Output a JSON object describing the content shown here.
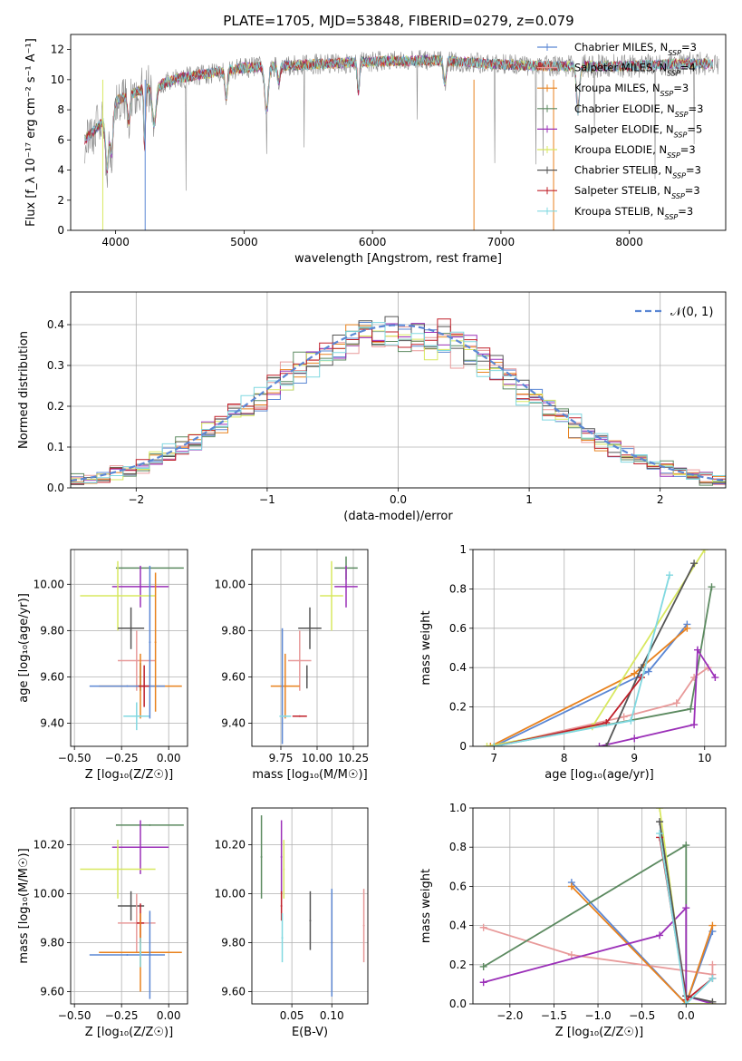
{
  "figure": {
    "title": "PLATE=1705, MJD=53848, FIBERID=0279, z=0.079"
  },
  "colors": {
    "Chabrier MILES": "#5b87d4",
    "Salpeter MILES": "#e89a9a",
    "Kroupa MILES": "#e8821e",
    "Chabrier ELODIE": "#5c8a60",
    "Salpeter ELODIE": "#9b30b8",
    "Kroupa ELODIE": "#d8e860",
    "Chabrier STELIB": "#555555",
    "Salpeter STELIB": "#c0202a",
    "Kroupa STELIB": "#80d8e0"
  },
  "chart_data": [
    {
      "id": "spectrum",
      "type": "line",
      "xlabel": "wavelength [Angstrom, rest frame]",
      "ylabel": "Flux [f_λ 10⁻¹⁷ erg cm⁻² s⁻¹ A⁻¹]",
      "xlim": [
        3650,
        8750
      ],
      "ylim": [
        0,
        13
      ],
      "xticks": [
        4000,
        5000,
        6000,
        7000,
        8000
      ],
      "yticks": [
        0,
        2,
        4,
        6,
        8,
        10,
        12
      ],
      "grid": false,
      "legend_position": "right",
      "continuum": {
        "x": [
          3760,
          3900,
          4000,
          4200,
          4500,
          5000,
          5500,
          6000,
          6500,
          7000,
          7400,
          8000,
          8500,
          8700
        ],
        "y": [
          6.0,
          7.2,
          8.6,
          9.3,
          10.1,
          10.8,
          11.0,
          11.2,
          11.3,
          11.0,
          10.9,
          10.9,
          11.1,
          11.0
        ]
      },
      "series": [
        {
          "name": "Chabrier MILES",
          "nssp": "3"
        },
        {
          "name": "Salpeter MILES",
          "nssp": "4"
        },
        {
          "name": "Kroupa MILES",
          "nssp": "3"
        },
        {
          "name": "Chabrier ELODIE",
          "nssp": "3"
        },
        {
          "name": "Salpeter ELODIE",
          "nssp": "5"
        },
        {
          "name": "Kroupa ELODIE",
          "nssp": "3"
        },
        {
          "name": "Chabrier STELIB",
          "nssp": "3"
        },
        {
          "name": "Salpeter STELIB",
          "nssp": "3"
        },
        {
          "name": "Kroupa STELIB",
          "nssp": "3"
        }
      ]
    },
    {
      "id": "residuals",
      "type": "histogram",
      "xlabel": "(data-model)/error",
      "ylabel": "Normed distribution",
      "xlim": [
        -2.5,
        2.5
      ],
      "ylim": [
        0,
        0.48
      ],
      "xticks": [
        -2,
        -1,
        0,
        1,
        2
      ],
      "yticks": [
        0.0,
        0.1,
        0.2,
        0.3,
        0.4
      ],
      "grid": true,
      "legend_position": "top-right",
      "reference_curve": {
        "name": "𝒩(0, 1)",
        "mu": 0,
        "sigma": 1
      }
    },
    {
      "id": "age_vs_Z",
      "type": "errorbar",
      "xlabel": "Z [log₁₀(Z/Z☉)]",
      "ylabel": "age  [log₁₀(age/yr)]",
      "xlim": [
        -0.52,
        0.1
      ],
      "ylim": [
        9.3,
        10.15
      ],
      "xticks": [
        -0.5,
        -0.25,
        0.0
      ],
      "yticks": [
        9.4,
        9.6,
        9.8,
        10.0
      ],
      "grid": true,
      "points": [
        {
          "series": "Chabrier ELODIE",
          "x": -0.1,
          "xerr": 0.18,
          "y": 10.07,
          "yerr": 0.0
        },
        {
          "series": "Salpeter ELODIE",
          "x": -0.15,
          "xerr": 0.15,
          "y": 9.99,
          "yerr": 0.09
        },
        {
          "series": "Kroupa ELODIE",
          "x": -0.27,
          "xerr": 0.2,
          "y": 9.95,
          "yerr": 0.15
        },
        {
          "series": "Chabrier STELIB",
          "x": -0.2,
          "xerr": 0.07,
          "y": 9.81,
          "yerr": 0.09
        },
        {
          "series": "Salpeter MILES",
          "x": -0.17,
          "xerr": 0.1,
          "y": 9.67,
          "yerr": 0.13
        },
        {
          "series": "Chabrier STELIB",
          "x": -0.15,
          "xerr": 0.0,
          "y": 9.6,
          "yerr": 0.06
        },
        {
          "series": "Kroupa MILES",
          "x": -0.15,
          "xerr": 0.22,
          "y": 9.56,
          "yerr": 0.14
        },
        {
          "series": "Chabrier MILES",
          "x": -0.22,
          "xerr": 0.2,
          "y": 9.56,
          "yerr": 0.0
        },
        {
          "series": "Salpeter STELIB",
          "x": -0.13,
          "xerr": 0.03,
          "y": 9.56,
          "yerr": 0.09
        },
        {
          "series": "Kroupa STELIB",
          "x": -0.17,
          "xerr": 0.07,
          "y": 9.43,
          "yerr": 0.06
        },
        {
          "series": "Chabrier MILES",
          "x": -0.1,
          "xerr": 0.0,
          "y": 9.75,
          "yerr": 0.33
        },
        {
          "series": "Kroupa MILES",
          "x": -0.07,
          "xerr": 0.0,
          "y": 9.75,
          "yerr": 0.3
        }
      ]
    },
    {
      "id": "age_vs_mass",
      "type": "errorbar",
      "xlabel": "mass [log₁₀(M/M☉)]",
      "ylabel": "",
      "xlim": [
        9.55,
        10.35
      ],
      "ylim": [
        9.3,
        10.15
      ],
      "xticks": [
        9.75,
        10.0,
        10.25
      ],
      "yticks": [
        9.4,
        9.6,
        9.8,
        10.0
      ],
      "grid": true,
      "points": [
        {
          "series": "Chabrier ELODIE",
          "x": 10.2,
          "xerr": 0.08,
          "y": 10.07,
          "yerr": 0.05
        },
        {
          "series": "Salpeter ELODIE",
          "x": 10.2,
          "xerr": 0.08,
          "y": 9.99,
          "yerr": 0.09
        },
        {
          "series": "Kroupa ELODIE",
          "x": 10.1,
          "xerr": 0.08,
          "y": 9.95,
          "yerr": 0.15
        },
        {
          "series": "Chabrier STELIB",
          "x": 9.95,
          "xerr": 0.08,
          "y": 9.81,
          "yerr": 0.09
        },
        {
          "series": "Salpeter MILES",
          "x": 9.88,
          "xerr": 0.08,
          "y": 9.67,
          "yerr": 0.13
        },
        {
          "series": "Kroupa MILES",
          "x": 9.78,
          "xerr": 0.1,
          "y": 9.56,
          "yerr": 0.14
        },
        {
          "series": "Chabrier MILES",
          "x": 9.76,
          "xerr": 0.0,
          "y": 9.56,
          "yerr": 0.25
        },
        {
          "series": "Salpeter STELIB",
          "x": 9.88,
          "xerr": 0.05,
          "y": 9.43,
          "yerr": 0.0
        },
        {
          "series": "Kroupa STELIB",
          "x": 9.78,
          "xerr": 0.04,
          "y": 9.43,
          "yerr": 0.0
        },
        {
          "series": "Chabrier STELIB",
          "x": 9.93,
          "xerr": 0.0,
          "y": 9.6,
          "yerr": 0.05
        }
      ]
    },
    {
      "id": "weight_vs_age",
      "type": "line",
      "xlabel": "age  [log₁₀(age/yr)]",
      "ylabel": "mass weight",
      "xlim": [
        6.7,
        10.3
      ],
      "ylim": [
        0,
        1.0
      ],
      "xticks": [
        7,
        8,
        9,
        10
      ],
      "yticks": [
        0.0,
        0.2,
        0.4,
        0.6,
        0.8,
        1.0
      ],
      "grid": true,
      "series": [
        {
          "name": "Chabrier MILES",
          "x": [
            7.0,
            9.2,
            9.75
          ],
          "y": [
            0.0,
            0.38,
            0.62
          ]
        },
        {
          "name": "Salpeter MILES",
          "x": [
            7.0,
            8.85,
            9.6,
            9.85,
            10.05
          ],
          "y": [
            0.0,
            0.15,
            0.22,
            0.35,
            0.4
          ]
        },
        {
          "name": "Kroupa MILES",
          "x": [
            6.95,
            9.0,
            9.75
          ],
          "y": [
            0.0,
            0.37,
            0.6
          ]
        },
        {
          "name": "Chabrier ELODIE",
          "x": [
            7.0,
            9.8,
            10.1
          ],
          "y": [
            0.0,
            0.19,
            0.81
          ]
        },
        {
          "name": "Salpeter ELODIE",
          "x": [
            8.5,
            9.0,
            9.85,
            9.9,
            10.15
          ],
          "y": [
            0.0,
            0.04,
            0.11,
            0.49,
            0.35
          ]
        },
        {
          "name": "Kroupa ELODIE",
          "x": [
            6.9,
            8.4,
            10.0
          ],
          "y": [
            0.0,
            0.1,
            1.0
          ]
        },
        {
          "name": "Chabrier STELIB",
          "x": [
            8.6,
            9.1,
            9.85
          ],
          "y": [
            0.0,
            0.4,
            0.93
          ]
        },
        {
          "name": "Salpeter STELIB",
          "x": [
            7.0,
            8.6,
            9.1
          ],
          "y": [
            0.0,
            0.12,
            0.35
          ]
        },
        {
          "name": "Kroupa STELIB",
          "x": [
            7.0,
            8.95,
            9.5
          ],
          "y": [
            0.0,
            0.13,
            0.87
          ]
        }
      ]
    },
    {
      "id": "mass_vs_Z",
      "type": "errorbar",
      "xlabel": "Z [log₁₀(Z/Z☉)]",
      "ylabel": "mass [log₁₀(M/M☉)]",
      "xlim": [
        -0.52,
        0.1
      ],
      "ylim": [
        9.55,
        10.35
      ],
      "xticks": [
        -0.5,
        -0.25,
        0.0
      ],
      "yticks": [
        9.6,
        9.8,
        10.0,
        10.2
      ],
      "grid": true,
      "points": [
        {
          "series": "Chabrier ELODIE",
          "x": -0.1,
          "xerr": 0.18,
          "y": 10.28,
          "yerr": 0.0
        },
        {
          "series": "Salpeter ELODIE",
          "x": -0.15,
          "xerr": 0.15,
          "y": 10.19,
          "yerr": 0.11
        },
        {
          "series": "Kroupa ELODIE",
          "x": -0.27,
          "xerr": 0.2,
          "y": 10.1,
          "yerr": 0.12
        },
        {
          "series": "Chabrier STELIB",
          "x": -0.2,
          "xerr": 0.07,
          "y": 9.95,
          "yerr": 0.06
        },
        {
          "series": "Salpeter MILES",
          "x": -0.17,
          "xerr": 0.1,
          "y": 9.88,
          "yerr": 0.12
        },
        {
          "series": "Salpeter STELIB",
          "x": -0.15,
          "xerr": 0.02,
          "y": 9.88,
          "yerr": 0.08
        },
        {
          "series": "Kroupa MILES",
          "x": -0.15,
          "xerr": 0.22,
          "y": 9.76,
          "yerr": 0.16
        },
        {
          "series": "Chabrier MILES",
          "x": -0.22,
          "xerr": 0.2,
          "y": 9.75,
          "yerr": 0.0
        },
        {
          "series": "Kroupa STELIB",
          "x": -0.15,
          "xerr": 0.0,
          "y": 9.76,
          "yerr": 0.06
        },
        {
          "series": "Chabrier MILES",
          "x": -0.1,
          "xerr": 0.0,
          "y": 9.75,
          "yerr": 0.18
        }
      ]
    },
    {
      "id": "mass_vs_ebv",
      "type": "errorbar",
      "xlabel": "E(B-V)",
      "ylabel": "",
      "xlim": [
        0.0,
        0.145
      ],
      "ylim": [
        9.55,
        10.35
      ],
      "xticks": [
        0.05,
        0.1
      ],
      "yticks": [
        9.6,
        9.8,
        10.0,
        10.2
      ],
      "grid": true,
      "points": [
        {
          "series": "Chabrier ELODIE",
          "x": 0.012,
          "xerr": 0.0,
          "y": 10.15,
          "yerr": 0.17
        },
        {
          "series": "Salpeter ELODIE",
          "x": 0.037,
          "xerr": 0.0,
          "y": 10.15,
          "yerr": 0.15
        },
        {
          "series": "Kroupa ELODIE",
          "x": 0.04,
          "xerr": 0.0,
          "y": 10.1,
          "yerr": 0.12
        },
        {
          "series": "Salpeter STELIB",
          "x": 0.037,
          "xerr": 0.0,
          "y": 9.95,
          "yerr": 0.06
        },
        {
          "series": "Kroupa STELIB",
          "x": 0.038,
          "xerr": 0.0,
          "y": 9.82,
          "yerr": 0.1
        },
        {
          "series": "Chabrier STELIB",
          "x": 0.073,
          "xerr": 0.0,
          "y": 9.89,
          "yerr": 0.12
        },
        {
          "series": "Kroupa MILES",
          "x": 0.1,
          "xerr": 0.0,
          "y": 9.8,
          "yerr": 0.2
        },
        {
          "series": "Chabrier MILES",
          "x": 0.1,
          "xerr": 0.0,
          "y": 9.8,
          "yerr": 0.22
        },
        {
          "series": "Salpeter MILES",
          "x": 0.14,
          "xerr": 0.0,
          "y": 9.87,
          "yerr": 0.15
        }
      ]
    },
    {
      "id": "weight_vs_Z",
      "type": "line",
      "xlabel": "Z [log₁₀(Z/Z☉)]",
      "ylabel": "mass weight",
      "xlim": [
        -2.42,
        0.45
      ],
      "ylim": [
        0,
        1.0
      ],
      "xticks": [
        -2.0,
        -1.5,
        -1.0,
        -0.5,
        0.0
      ],
      "yticks": [
        0.0,
        0.2,
        0.4,
        0.6,
        0.8,
        1.0
      ],
      "grid": true,
      "series": [
        {
          "name": "Chabrier MILES",
          "x": [
            -1.3,
            0.0,
            0.3
          ],
          "y": [
            0.62,
            0.0,
            0.37
          ]
        },
        {
          "name": "Salpeter MILES",
          "x": [
            -2.3,
            -1.3,
            0.3,
            0.3
          ],
          "y": [
            0.39,
            0.25,
            0.15,
            0.2
          ]
        },
        {
          "name": "Kroupa MILES",
          "x": [
            -1.3,
            0.0,
            0.3
          ],
          "y": [
            0.6,
            0.0,
            0.4
          ]
        },
        {
          "name": "Chabrier ELODIE",
          "x": [
            -2.3,
            0.0,
            0.0
          ],
          "y": [
            0.19,
            0.81,
            0.0
          ]
        },
        {
          "name": "Salpeter ELODIE",
          "x": [
            -2.3,
            -0.3,
            0.0,
            0.0,
            0.3
          ],
          "y": [
            0.11,
            0.35,
            0.49,
            0.04,
            0.0
          ]
        },
        {
          "name": "Kroupa ELODIE",
          "x": [
            -0.3,
            0.0,
            0.3
          ],
          "y": [
            1.0,
            0.0,
            0.0
          ]
        },
        {
          "name": "Chabrier STELIB",
          "x": [
            -0.3,
            0.0,
            0.3
          ],
          "y": [
            0.93,
            0.04,
            0.01
          ]
        },
        {
          "name": "Salpeter STELIB",
          "x": [
            -0.3,
            0.0,
            0.3
          ],
          "y": [
            0.85,
            0.02,
            0.13
          ]
        },
        {
          "name": "Kroupa STELIB",
          "x": [
            -0.3,
            0.0,
            0.3
          ],
          "y": [
            0.87,
            0.0,
            0.13
          ]
        }
      ]
    }
  ]
}
